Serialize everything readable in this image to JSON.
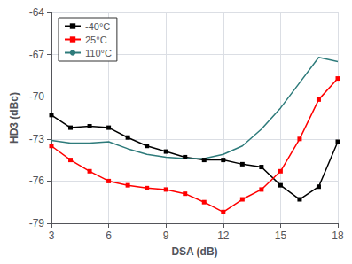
{
  "chart_data": {
    "type": "line",
    "xlabel": "DSA (dB)",
    "ylabel": "HD3 (dBc)",
    "x": [
      3,
      4,
      5,
      6,
      7,
      8,
      9,
      10,
      11,
      12,
      13,
      14,
      15,
      16,
      17,
      18
    ],
    "series": [
      {
        "name": "-40°C",
        "color": "#000000",
        "marker": "square",
        "values": [
          -71.3,
          -72.2,
          -72.1,
          -72.2,
          -72.9,
          -73.5,
          -73.9,
          -74.3,
          -74.5,
          -74.5,
          -74.8,
          -75.0,
          -76.3,
          -77.3,
          -76.4,
          -73.2
        ]
      },
      {
        "name": "25°C",
        "color": "#ff0000",
        "marker": "square",
        "values": [
          -73.5,
          -74.5,
          -75.3,
          -76.0,
          -76.3,
          -76.5,
          -76.6,
          -76.9,
          -77.5,
          -78.2,
          -77.3,
          -76.6,
          -75.3,
          -73.0,
          -70.2,
          -68.7
        ]
      },
      {
        "name": "110°C",
        "color": "#2e7b7b",
        "marker": "none",
        "values": [
          -73.1,
          -73.3,
          -73.3,
          -73.2,
          -73.7,
          -74.1,
          -74.3,
          -74.4,
          -74.4,
          -74.1,
          -73.5,
          -72.3,
          -70.8,
          -69.0,
          -67.2,
          -67.5
        ]
      }
    ],
    "xlim": [
      3,
      18
    ],
    "ylim": [
      -79,
      -64
    ],
    "xticks": [
      3,
      6,
      9,
      12,
      15,
      18
    ],
    "yticks": [
      -79,
      -76,
      -73,
      -70,
      -67,
      -64
    ],
    "grid": true,
    "legend": "upper left"
  }
}
